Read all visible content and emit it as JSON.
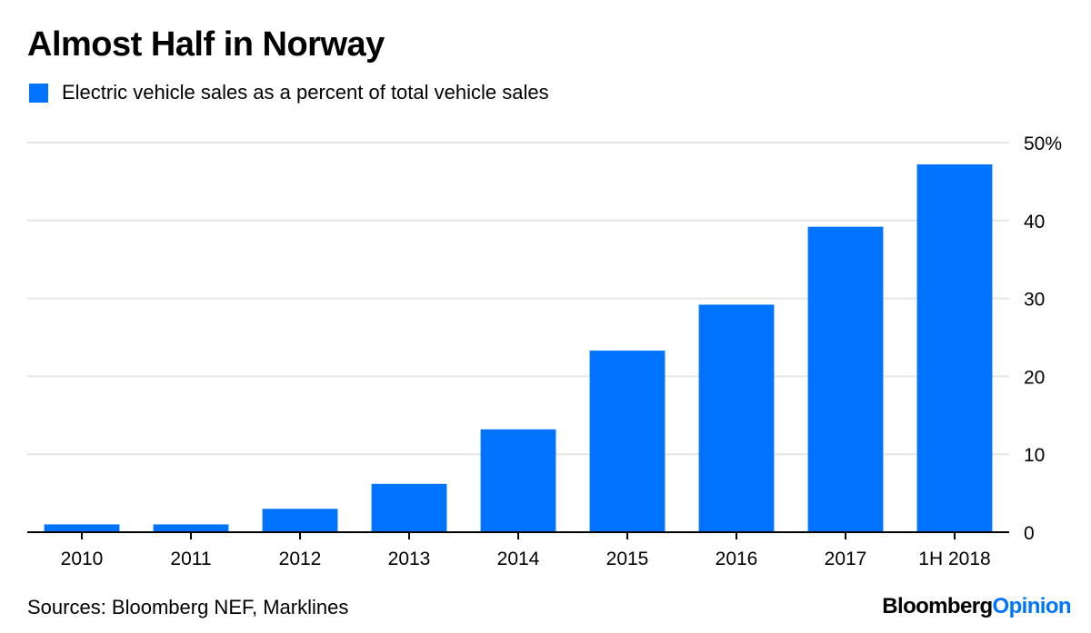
{
  "colors": {
    "bar": "#0073ff",
    "grid": "#e6e6e6",
    "axis": "#000000",
    "brand_accent": "#0073ff"
  },
  "chart_data": {
    "type": "bar",
    "title": "Almost Half in Norway",
    "legend": [
      "Electric vehicle sales as a percent of total vehicle sales"
    ],
    "legend_position": "top-left",
    "categories": [
      "2010",
      "2011",
      "2012",
      "2013",
      "2014",
      "2015",
      "2016",
      "2017",
      "1H 2018"
    ],
    "series": [
      {
        "name": "Electric vehicle sales as a percent of total vehicle sales",
        "values": [
          1,
          1,
          3,
          6.2,
          13.2,
          23.3,
          29.2,
          39.2,
          47.2
        ]
      }
    ],
    "ylim": [
      0,
      50
    ],
    "yticks": [
      0,
      10,
      20,
      30,
      40,
      50
    ],
    "ytick_labels": [
      "0",
      "10",
      "20",
      "30",
      "40",
      "50%"
    ],
    "y_axis_side": "right",
    "grid": true
  },
  "footer": {
    "source": "Sources: Bloomberg NEF, Marklines",
    "brand_part1": "Bloomberg",
    "brand_part2": "Opinion"
  }
}
